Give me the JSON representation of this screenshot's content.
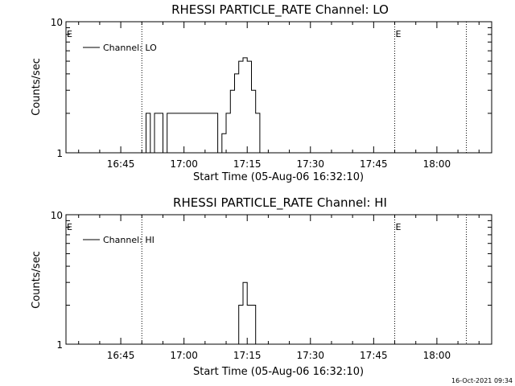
{
  "footer": {
    "timestamp": "16-Oct-2021 09:34"
  },
  "chart_data": [
    {
      "type": "line",
      "title": "RHESSI PARTICLE_RATE Channel: LO",
      "xlabel": "Start Time (05-Aug-06 16:32:10)",
      "ylabel": "Counts/sec",
      "yscale": "log",
      "ylim": [
        1,
        10
      ],
      "xlim": [
        "16:32",
        "18:13"
      ],
      "x_ticks": [
        "16:45",
        "17:00",
        "17:15",
        "17:30",
        "17:45",
        "18:00"
      ],
      "y_ticks": [
        "1",
        "10"
      ],
      "event_lines": [
        "16:50",
        "17:50",
        "18:07"
      ],
      "event_marks": [
        {
          "label": "E",
          "time": "16:32"
        },
        {
          "label": "E",
          "time": "17:50"
        }
      ],
      "legend": {
        "label": "Channel: LO",
        "position": "top-left"
      },
      "series": [
        {
          "name": "Channel: LO",
          "x": [
            "16:50",
            "16:51",
            "16:52",
            "16:53",
            "16:54",
            "16:55",
            "16:56",
            "17:08",
            "17:09",
            "17:10",
            "17:11",
            "17:12",
            "17:13",
            "17:14",
            "17:15",
            "17:16",
            "17:17",
            "17:18"
          ],
          "y": [
            1,
            2,
            1,
            2,
            2,
            1,
            2,
            1,
            1.4,
            2,
            3,
            4,
            5,
            5.3,
            5,
            3,
            2,
            1
          ]
        }
      ]
    },
    {
      "type": "line",
      "title": "RHESSI PARTICLE_RATE Channel: HI",
      "xlabel": "Start Time (05-Aug-06 16:32:10)",
      "ylabel": "Counts/sec",
      "yscale": "log",
      "ylim": [
        1,
        10
      ],
      "xlim": [
        "16:32",
        "18:13"
      ],
      "x_ticks": [
        "16:45",
        "17:00",
        "17:15",
        "17:30",
        "17:45",
        "18:00"
      ],
      "y_ticks": [
        "1",
        "10"
      ],
      "event_lines": [
        "16:50",
        "17:50",
        "18:07"
      ],
      "event_marks": [
        {
          "label": "E",
          "time": "16:32"
        },
        {
          "label": "E",
          "time": "17:50"
        }
      ],
      "legend": {
        "label": "Channel: HI",
        "position": "top-left"
      },
      "series": [
        {
          "name": "Channel: HI",
          "x": [
            "17:12",
            "17:13",
            "17:14",
            "17:15",
            "17:16",
            "17:17"
          ],
          "y": [
            1,
            2,
            3,
            2,
            2,
            1
          ]
        }
      ]
    }
  ]
}
